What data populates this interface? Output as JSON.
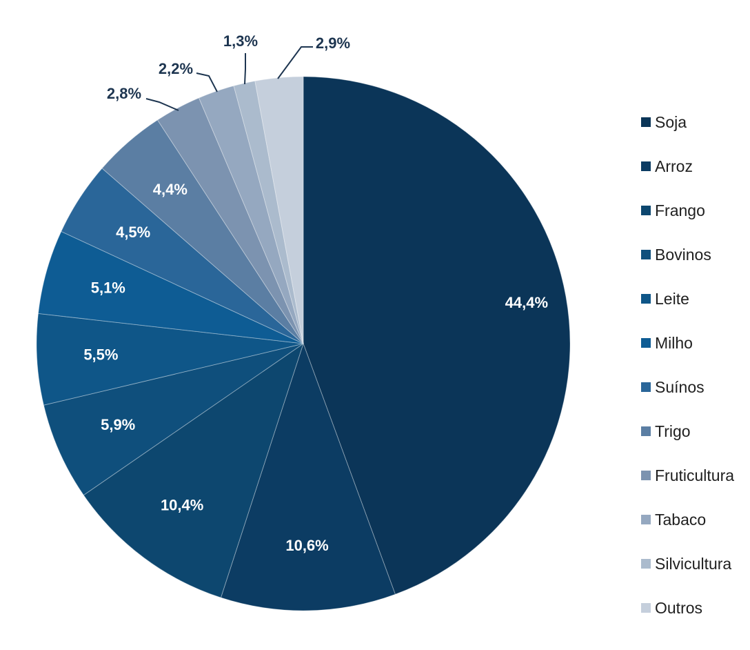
{
  "chart_data": {
    "type": "pie",
    "title": "",
    "slices": [
      {
        "name": "Soja",
        "value": 44.4,
        "label": "44,4%",
        "color": "#0b3558"
      },
      {
        "name": "Arroz",
        "value": 10.6,
        "label": "10,6%",
        "color": "#0c3c63"
      },
      {
        "name": "Frango",
        "value": 10.4,
        "label": "10,4%",
        "color": "#0d476f"
      },
      {
        "name": "Bovinos",
        "value": 5.9,
        "label": "5,9%",
        "color": "#0f4f7c"
      },
      {
        "name": "Leite",
        "value": 5.5,
        "label": "5,5%",
        "color": "#0f5688"
      },
      {
        "name": "Milho",
        "value": 5.1,
        "label": "5,1%",
        "color": "#0e5c94"
      },
      {
        "name": "Suínos",
        "value": 4.5,
        "label": "4,5%",
        "color": "#2a6699"
      },
      {
        "name": "Trigo",
        "value": 4.4,
        "label": "4,4%",
        "color": "#5b7ea3"
      },
      {
        "name": "Fruticultura",
        "value": 2.8,
        "label": "2,8%",
        "color": "#7c93b0"
      },
      {
        "name": "Tabaco",
        "value": 2.2,
        "label": "2,2%",
        "color": "#95a8c0"
      },
      {
        "name": "Silvicultura",
        "value": 1.3,
        "label": "1,3%",
        "color": "#abbbcd"
      },
      {
        "name": "Outros",
        "value": 2.9,
        "label": "2,9%",
        "color": "#c5cfdc"
      }
    ],
    "legend_position": "right",
    "label_color_inside": "#ffffff",
    "label_color_outside": "#1d3550",
    "leader_color": "#1d3550"
  }
}
